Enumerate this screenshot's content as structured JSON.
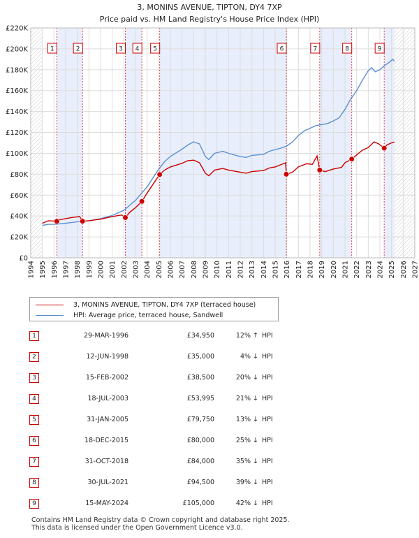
{
  "chart_data": {
    "type": "line",
    "title": "3, MONINS AVENUE, TIPTON, DY4 7XP",
    "subtitle": "Price paid vs. HM Land Registry's House Price Index (HPI)",
    "xlim": [
      1994,
      2027
    ],
    "ylim": [
      0,
      220000
    ],
    "x_ticks": [
      "1994",
      "1995",
      "1996",
      "1997",
      "1998",
      "1999",
      "2000",
      "2001",
      "2002",
      "2003",
      "2004",
      "2005",
      "2006",
      "2007",
      "2008",
      "2009",
      "2010",
      "2011",
      "2012",
      "2013",
      "2014",
      "2015",
      "2016",
      "2017",
      "2018",
      "2019",
      "2020",
      "2021",
      "2022",
      "2023",
      "2024",
      "2025",
      "2026",
      "2027"
    ],
    "y_ticks": [
      {
        "value": 0,
        "label": "£0"
      },
      {
        "value": 20000,
        "label": "£20K"
      },
      {
        "value": 40000,
        "label": "£40K"
      },
      {
        "value": 60000,
        "label": "£60K"
      },
      {
        "value": 80000,
        "label": "£80K"
      },
      {
        "value": 100000,
        "label": "£100K"
      },
      {
        "value": 120000,
        "label": "£120K"
      },
      {
        "value": 140000,
        "label": "£140K"
      },
      {
        "value": 160000,
        "label": "£160K"
      },
      {
        "value": 180000,
        "label": "£180K"
      },
      {
        "value": 200000,
        "label": "£200K"
      },
      {
        "value": 220000,
        "label": "£220K"
      }
    ],
    "data_start": 1995.0,
    "data_end": 2025.25,
    "shaded_spans": [
      [
        1996.24,
        1998.45
      ],
      [
        2002.13,
        2003.55
      ],
      [
        2005.08,
        2015.96
      ],
      [
        2018.83,
        2021.58
      ],
      [
        2024.37,
        2025.25
      ]
    ],
    "series": [
      {
        "name": "3, MONINS AVENUE, TIPTON, DY4 7XP (terraced house)",
        "color": "#cc0000",
        "points": [
          [
            1995.0,
            33000
          ],
          [
            1995.5,
            35500
          ],
          [
            1996.24,
            34950
          ],
          [
            1996.5,
            36500
          ],
          [
            1997,
            37500
          ],
          [
            1997.5,
            38500
          ],
          [
            1998.2,
            39500
          ],
          [
            1998.45,
            35000
          ],
          [
            1999,
            35500
          ],
          [
            2000,
            37000
          ],
          [
            2001,
            39500
          ],
          [
            2001.8,
            41000
          ],
          [
            2002.13,
            38500
          ],
          [
            2002.5,
            43500
          ],
          [
            2003,
            48000
          ],
          [
            2003.55,
            53995
          ],
          [
            2004,
            62000
          ],
          [
            2004.6,
            72000
          ],
          [
            2005.08,
            79750
          ],
          [
            2005.5,
            84000
          ],
          [
            2006,
            87000
          ],
          [
            2007,
            90500
          ],
          [
            2007.5,
            93000
          ],
          [
            2008,
            93500
          ],
          [
            2008.5,
            91000
          ],
          [
            2009,
            81000
          ],
          [
            2009.3,
            78500
          ],
          [
            2009.8,
            84000
          ],
          [
            2010.5,
            85500
          ],
          [
            2011,
            84000
          ],
          [
            2012,
            82000
          ],
          [
            2012.5,
            81000
          ],
          [
            2013,
            82500
          ],
          [
            2014,
            83500
          ],
          [
            2014.5,
            86000
          ],
          [
            2015,
            87000
          ],
          [
            2015.7,
            90000
          ],
          [
            2015.9,
            91000
          ],
          [
            2015.96,
            80000
          ],
          [
            2016.5,
            82000
          ],
          [
            2017,
            87000
          ],
          [
            2017.7,
            90000
          ],
          [
            2018.2,
            89500
          ],
          [
            2018.6,
            97500
          ],
          [
            2018.83,
            84000
          ],
          [
            2019.3,
            82500
          ],
          [
            2020,
            85000
          ],
          [
            2020.7,
            86500
          ],
          [
            2021,
            91000
          ],
          [
            2021.58,
            94500
          ],
          [
            2022,
            98500
          ],
          [
            2022.5,
            103000
          ],
          [
            2023,
            105500
          ],
          [
            2023.5,
            111000
          ],
          [
            2023.9,
            109000
          ],
          [
            2024.37,
            105000
          ],
          [
            2024.6,
            108000
          ],
          [
            2025,
            110000
          ],
          [
            2025.25,
            111000
          ]
        ]
      },
      {
        "name": "HPI: Average price, terraced house, Sandwell",
        "color": "#5b8fd0",
        "points": [
          [
            1995.0,
            31000
          ],
          [
            1995.5,
            32000
          ],
          [
            1996,
            32000
          ],
          [
            1997,
            33000
          ],
          [
            1998,
            34500
          ],
          [
            1999,
            35500
          ],
          [
            2000,
            37500
          ],
          [
            2001,
            40500
          ],
          [
            2002,
            45500
          ],
          [
            2003,
            55000
          ],
          [
            2004,
            68000
          ],
          [
            2005,
            85000
          ],
          [
            2005.5,
            92000
          ],
          [
            2006,
            97000
          ],
          [
            2007,
            104000
          ],
          [
            2007.5,
            108000
          ],
          [
            2008,
            111000
          ],
          [
            2008.5,
            109000
          ],
          [
            2009,
            97000
          ],
          [
            2009.3,
            94000
          ],
          [
            2009.8,
            100000
          ],
          [
            2010.5,
            102000
          ],
          [
            2011,
            100000
          ],
          [
            2012,
            97000
          ],
          [
            2012.5,
            96000
          ],
          [
            2013,
            98000
          ],
          [
            2014,
            99000
          ],
          [
            2014.5,
            102000
          ],
          [
            2015,
            103500
          ],
          [
            2015.5,
            105000
          ],
          [
            2016,
            107000
          ],
          [
            2016.5,
            111000
          ],
          [
            2017,
            117000
          ],
          [
            2017.5,
            121500
          ],
          [
            2018,
            124000
          ],
          [
            2018.5,
            126500
          ],
          [
            2019,
            127500
          ],
          [
            2019.5,
            128500
          ],
          [
            2020,
            131000
          ],
          [
            2020.5,
            134000
          ],
          [
            2021,
            142000
          ],
          [
            2021.5,
            152000
          ],
          [
            2022,
            160000
          ],
          [
            2022.5,
            170000
          ],
          [
            2023,
            179000
          ],
          [
            2023.3,
            182000
          ],
          [
            2023.6,
            178000
          ],
          [
            2024,
            180000
          ],
          [
            2024.4,
            184000
          ],
          [
            2024.8,
            187000
          ],
          [
            2025.1,
            190000
          ],
          [
            2025.25,
            188000
          ]
        ]
      }
    ],
    "markers": [
      {
        "label": "1",
        "x": 1996.24,
        "y": 34950
      },
      {
        "label": "2",
        "x": 1998.45,
        "y": 35000
      },
      {
        "label": "3",
        "x": 2002.13,
        "y": 38500
      },
      {
        "label": "4",
        "x": 2003.55,
        "y": 53995
      },
      {
        "label": "5",
        "x": 2005.08,
        "y": 79750
      },
      {
        "label": "6",
        "x": 2015.96,
        "y": 80000
      },
      {
        "label": "7",
        "x": 2018.83,
        "y": 84000
      },
      {
        "label": "8",
        "x": 2021.58,
        "y": 94500
      },
      {
        "label": "9",
        "x": 2024.37,
        "y": 105000
      }
    ]
  },
  "legend": {
    "property_label": "3, MONINS AVENUE, TIPTON, DY4 7XP (terraced house)",
    "hpi_label": "HPI: Average price, terraced house, Sandwell",
    "property_color": "#cc0000",
    "hpi_color": "#5b8fd0"
  },
  "sales": [
    {
      "num": "1",
      "date": "29-MAR-1996",
      "price": "£34,950",
      "delta": "12% ↑",
      "hpi": "HPI"
    },
    {
      "num": "2",
      "date": "12-JUN-1998",
      "price": "£35,000",
      "delta": "4% ↓",
      "hpi": "HPI"
    },
    {
      "num": "3",
      "date": "15-FEB-2002",
      "price": "£38,500",
      "delta": "20% ↓",
      "hpi": "HPI"
    },
    {
      "num": "4",
      "date": "18-JUL-2003",
      "price": "£53,995",
      "delta": "21% ↓",
      "hpi": "HPI"
    },
    {
      "num": "5",
      "date": "31-JAN-2005",
      "price": "£79,750",
      "delta": "13% ↓",
      "hpi": "HPI"
    },
    {
      "num": "6",
      "date": "18-DEC-2015",
      "price": "£80,000",
      "delta": "25% ↓",
      "hpi": "HPI"
    },
    {
      "num": "7",
      "date": "31-OCT-2018",
      "price": "£84,000",
      "delta": "35% ↓",
      "hpi": "HPI"
    },
    {
      "num": "8",
      "date": "30-JUL-2021",
      "price": "£94,500",
      "delta": "39% ↓",
      "hpi": "HPI"
    },
    {
      "num": "9",
      "date": "15-MAY-2024",
      "price": "£105,000",
      "delta": "42% ↓",
      "hpi": "HPI"
    }
  ],
  "footer": {
    "line1": "Contains HM Land Registry data © Crown copyright and database right 2025.",
    "line2": "This data is licensed under the Open Government Licence v3.0."
  }
}
